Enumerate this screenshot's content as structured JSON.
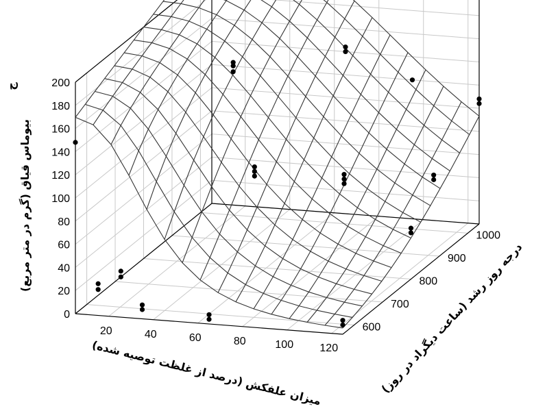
{
  "chart_data": {
    "type": "surface3d",
    "title": "",
    "zlabel": "بیوماس قیاق (گرم در متر مربع)",
    "zlabel_top": "ج",
    "xlabel": "میزان علفکش (درصد از غلظت توصیه شده)",
    "ylabel": "درجه روز رشد (ساعت دیگراد در روز)",
    "x_ticks": [
      "20",
      "40",
      "60",
      "80",
      "100",
      "120"
    ],
    "y_ticks": [
      "600",
      "700",
      "800",
      "900",
      "1000"
    ],
    "z_ticks": [
      "0",
      "20",
      "40",
      "60",
      "80",
      "100",
      "120",
      "140",
      "160",
      "180",
      "200"
    ],
    "xlim": [
      5,
      125
    ],
    "ylim": [
      560,
      1040
    ],
    "zlim": [
      0,
      200
    ],
    "grid": true,
    "points": [
      {
        "x": 5,
        "y": 1040,
        "z": 182
      },
      {
        "x": 5,
        "y": 1040,
        "z": 197
      },
      {
        "x": 5,
        "y": 560,
        "z": 148
      },
      {
        "x": 35,
        "y": 880,
        "z": 150
      },
      {
        "x": 35,
        "y": 880,
        "z": 155
      },
      {
        "x": 35,
        "y": 880,
        "z": 158
      },
      {
        "x": 65,
        "y": 1040,
        "z": 140
      },
      {
        "x": 65,
        "y": 1040,
        "z": 144
      },
      {
        "x": 65,
        "y": 720,
        "z": 100
      },
      {
        "x": 65,
        "y": 720,
        "z": 96
      },
      {
        "x": 65,
        "y": 720,
        "z": 104
      },
      {
        "x": 95,
        "y": 1040,
        "z": 120
      },
      {
        "x": 95,
        "y": 800,
        "z": 78
      },
      {
        "x": 95,
        "y": 800,
        "z": 82
      },
      {
        "x": 95,
        "y": 800,
        "z": 86
      },
      {
        "x": 125,
        "y": 1040,
        "z": 104
      },
      {
        "x": 125,
        "y": 1040,
        "z": 108
      },
      {
        "x": 125,
        "y": 880,
        "z": 70
      },
      {
        "x": 125,
        "y": 880,
        "z": 74
      },
      {
        "x": 125,
        "y": 800,
        "z": 40
      },
      {
        "x": 125,
        "y": 800,
        "z": 44
      },
      {
        "x": 5,
        "y": 720,
        "z": 0
      },
      {
        "x": 5,
        "y": 720,
        "z": 5
      },
      {
        "x": 5,
        "y": 640,
        "z": 5
      },
      {
        "x": 5,
        "y": 640,
        "z": 10
      },
      {
        "x": 35,
        "y": 560,
        "z": 8
      },
      {
        "x": 35,
        "y": 560,
        "z": 12
      },
      {
        "x": 65,
        "y": 560,
        "z": 4
      },
      {
        "x": 65,
        "y": 560,
        "z": 8
      },
      {
        "x": 125,
        "y": 560,
        "z": 8
      },
      {
        "x": 125,
        "y": 560,
        "z": 12
      }
    ]
  }
}
